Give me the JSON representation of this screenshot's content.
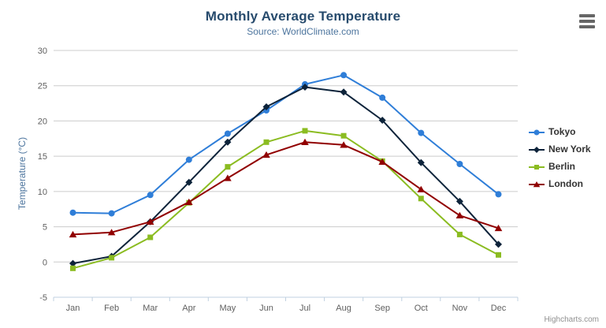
{
  "chart_data": {
    "type": "line",
    "title": "Monthly Average Temperature",
    "subtitle": "Source: WorldClimate.com",
    "xlabel": "",
    "ylabel": "Temperature (°C)",
    "categories": [
      "Jan",
      "Feb",
      "Mar",
      "Apr",
      "May",
      "Jun",
      "Jul",
      "Aug",
      "Sep",
      "Oct",
      "Nov",
      "Dec"
    ],
    "ylim": [
      -5,
      30
    ],
    "yticks": [
      -5,
      0,
      5,
      10,
      15,
      20,
      25,
      30
    ],
    "grid": "horizontal",
    "legend_position": "right",
    "series": [
      {
        "name": "Tokyo",
        "color": "#2f7ed8",
        "marker": "circle",
        "values": [
          7.0,
          6.9,
          9.5,
          14.5,
          18.2,
          21.5,
          25.2,
          26.5,
          23.3,
          18.3,
          13.9,
          9.6
        ]
      },
      {
        "name": "New York",
        "color": "#0d233a",
        "marker": "diamond",
        "values": [
          -0.2,
          0.8,
          5.7,
          11.3,
          17.0,
          22.0,
          24.8,
          24.1,
          20.1,
          14.1,
          8.6,
          2.5
        ]
      },
      {
        "name": "Berlin",
        "color": "#8bbc21",
        "marker": "square",
        "values": [
          -0.9,
          0.6,
          3.5,
          8.4,
          13.5,
          17.0,
          18.6,
          17.9,
          14.3,
          9.0,
          3.9,
          1.0
        ]
      },
      {
        "name": "London",
        "color": "#910000",
        "marker": "triangle",
        "values": [
          3.9,
          4.2,
          5.7,
          8.5,
          11.9,
          15.2,
          17.0,
          16.6,
          14.2,
          10.3,
          6.6,
          4.8
        ]
      }
    ],
    "axis_colors": {
      "grid": "#cccccc",
      "axis_line": "#c0d0e0",
      "tick_label": "#606060"
    }
  },
  "credits": {
    "label": "Highcharts.com"
  }
}
